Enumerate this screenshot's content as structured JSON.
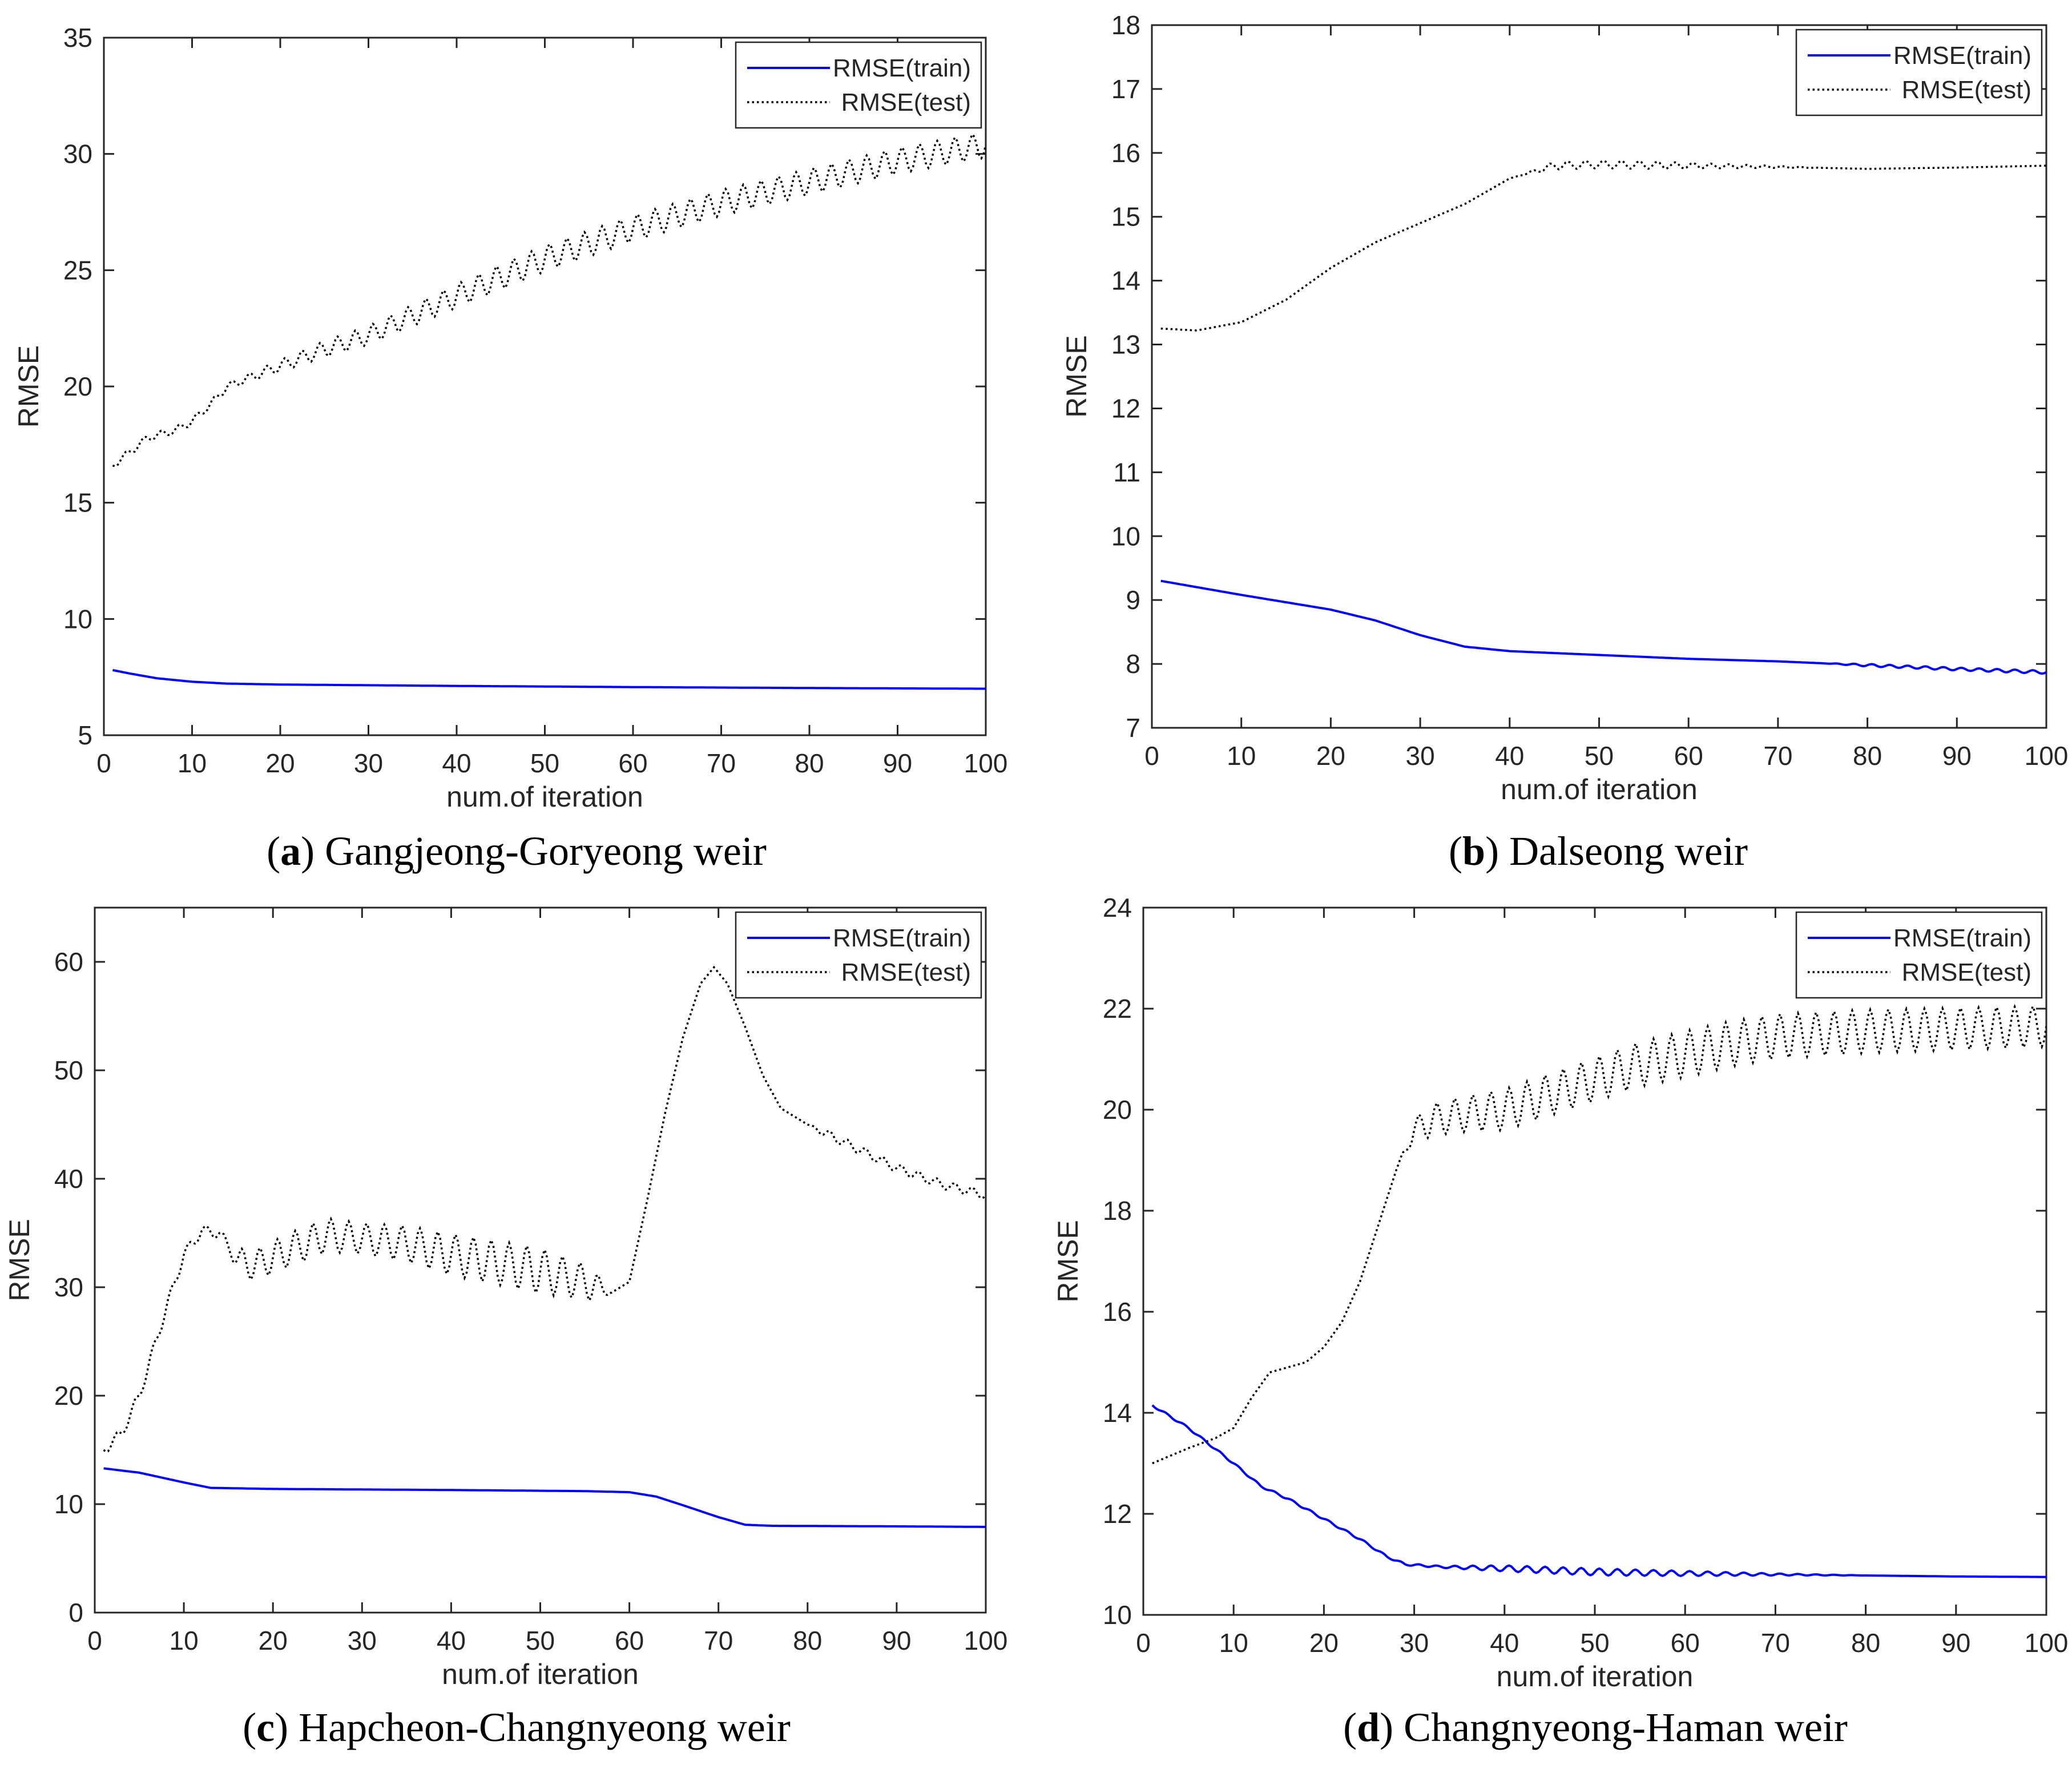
{
  "chart_data": [
    {
      "id": "a",
      "type": "line",
      "caption_letter": "a",
      "caption_text": "Gangjeong-Goryeong weir",
      "xlabel": "num.of iteration",
      "ylabel": "RMSE",
      "xlim": [
        0,
        100
      ],
      "ylim": [
        5,
        35
      ],
      "xticks": [
        0,
        10,
        20,
        30,
        40,
        50,
        60,
        70,
        80,
        90,
        100
      ],
      "yticks": [
        5,
        10,
        15,
        20,
        25,
        30,
        35
      ],
      "legend_position": "top-right",
      "series": [
        {
          "name": "RMSE(train)",
          "style": "solid",
          "color": "#0000ff",
          "knots": [
            [
              1,
              7.8
            ],
            [
              3,
              7.65
            ],
            [
              6,
              7.45
            ],
            [
              10,
              7.3
            ],
            [
              14,
              7.22
            ],
            [
              20,
              7.18
            ],
            [
              40,
              7.12
            ],
            [
              60,
              7.07
            ],
            [
              80,
              7.03
            ],
            [
              100,
              7.0
            ]
          ],
          "oscillation": []
        },
        {
          "name": "RMSE(test)",
          "style": "dotted",
          "color": "#000000",
          "knots": [
            [
              1,
              16.6
            ],
            [
              3,
              17.2
            ],
            [
              5,
              17.8
            ],
            [
              8,
              18.1
            ],
            [
              10,
              18.5
            ],
            [
              12,
              19.2
            ],
            [
              14,
              20.0
            ],
            [
              18,
              20.6
            ],
            [
              25,
              21.6
            ],
            [
              30,
              22.2
            ],
            [
              40,
              23.9
            ],
            [
              50,
              25.5
            ],
            [
              60,
              26.8
            ],
            [
              70,
              27.9
            ],
            [
              80,
              28.8
            ],
            [
              90,
              29.7
            ],
            [
              100,
              30.4
            ]
          ],
          "oscillation": [
            [
              15,
              0.15
            ],
            [
              25,
              0.35
            ],
            [
              45,
              0.55
            ],
            [
              100,
              0.55
            ]
          ],
          "oscillation_period": 2
        }
      ]
    },
    {
      "id": "b",
      "type": "line",
      "caption_letter": "b",
      "caption_text": "Dalseong weir",
      "xlabel": "num.of iteration",
      "ylabel": "RMSE",
      "xlim": [
        0,
        100
      ],
      "ylim": [
        7,
        18
      ],
      "xticks": [
        0,
        10,
        20,
        30,
        40,
        50,
        60,
        70,
        80,
        90,
        100
      ],
      "yticks": [
        7,
        8,
        9,
        10,
        11,
        12,
        13,
        14,
        15,
        16,
        17,
        18
      ],
      "legend_position": "top-right",
      "series": [
        {
          "name": "RMSE(train)",
          "style": "solid",
          "color": "#0000ff",
          "knots": [
            [
              1,
              9.3
            ],
            [
              10,
              9.08
            ],
            [
              20,
              8.85
            ],
            [
              25,
              8.68
            ],
            [
              30,
              8.45
            ],
            [
              35,
              8.27
            ],
            [
              40,
              8.2
            ],
            [
              50,
              8.14
            ],
            [
              60,
              8.08
            ],
            [
              70,
              8.04
            ],
            [
              80,
              7.98
            ],
            [
              90,
              7.92
            ],
            [
              100,
              7.87
            ]
          ],
          "oscillation": [
            [
              75,
              0.0
            ],
            [
              80,
              0.02
            ],
            [
              100,
              0.025
            ]
          ],
          "oscillation_period": 2
        },
        {
          "name": "RMSE(test)",
          "style": "dotted",
          "color": "#000000",
          "knots": [
            [
              1,
              13.25
            ],
            [
              5,
              13.22
            ],
            [
              10,
              13.35
            ],
            [
              15,
              13.7
            ],
            [
              20,
              14.2
            ],
            [
              25,
              14.6
            ],
            [
              30,
              14.9
            ],
            [
              35,
              15.2
            ],
            [
              40,
              15.6
            ],
            [
              45,
              15.8
            ],
            [
              50,
              15.82
            ],
            [
              60,
              15.8
            ],
            [
              70,
              15.78
            ],
            [
              80,
              15.75
            ],
            [
              90,
              15.77
            ],
            [
              100,
              15.8
            ]
          ],
          "oscillation": [
            [
              41,
              0.0
            ],
            [
              45,
              0.06
            ],
            [
              55,
              0.06
            ],
            [
              65,
              0.03
            ],
            [
              75,
              0.0
            ]
          ],
          "oscillation_period": 2
        }
      ]
    },
    {
      "id": "c",
      "type": "line",
      "caption_letter": "c",
      "caption_text": "Hapcheon-Changnyeong weir",
      "xlabel": "num.of iteration",
      "ylabel": "RMSE",
      "xlim": [
        0,
        100
      ],
      "ylim": [
        0,
        65
      ],
      "xticks": [
        0,
        10,
        20,
        30,
        40,
        50,
        60,
        70,
        80,
        90,
        100
      ],
      "yticks": [
        0,
        10,
        20,
        30,
        40,
        50,
        60
      ],
      "legend_position": "top-right",
      "series": [
        {
          "name": "RMSE(train)",
          "style": "solid",
          "color": "#0000ff",
          "knots": [
            [
              1,
              13.3
            ],
            [
              5,
              12.9
            ],
            [
              10,
              12.0
            ],
            [
              13,
              11.5
            ],
            [
              20,
              11.4
            ],
            [
              40,
              11.3
            ],
            [
              55,
              11.2
            ],
            [
              60,
              11.1
            ],
            [
              63,
              10.7
            ],
            [
              66,
              9.9
            ],
            [
              70,
              8.8
            ],
            [
              73,
              8.1
            ],
            [
              76,
              8.0
            ],
            [
              90,
              7.95
            ],
            [
              100,
              7.9
            ]
          ],
          "oscillation": []
        },
        {
          "name": "RMSE(test)",
          "style": "dotted",
          "color": "#000000",
          "knots": [
            [
              1,
              15.0
            ],
            [
              3,
              16.5
            ],
            [
              5,
              20.0
            ],
            [
              8,
              28.0
            ],
            [
              10,
              33.0
            ],
            [
              12,
              35.2
            ],
            [
              14,
              35.0
            ],
            [
              16,
              32.5
            ],
            [
              18,
              32.0
            ],
            [
              22,
              33.5
            ],
            [
              26,
              34.8
            ],
            [
              30,
              34.5
            ],
            [
              35,
              34.0
            ],
            [
              40,
              33.0
            ],
            [
              45,
              32.3
            ],
            [
              50,
              31.5
            ],
            [
              55,
              30.5
            ],
            [
              58,
              29.5
            ],
            [
              60,
              30.5
            ],
            [
              62,
              38.0
            ],
            [
              64,
              46.0
            ],
            [
              66,
              53.0
            ],
            [
              68,
              58.0
            ],
            [
              69.5,
              59.5
            ],
            [
              71,
              58.0
            ],
            [
              73,
              54.0
            ],
            [
              75,
              49.5
            ],
            [
              77,
              46.5
            ],
            [
              80,
              45.0
            ],
            [
              85,
              43.0
            ],
            [
              90,
              41.0
            ],
            [
              95,
              39.5
            ],
            [
              100,
              38.5
            ]
          ],
          "oscillation": [
            [
              15,
              0.5
            ],
            [
              17,
              1.4
            ],
            [
              25,
              1.6
            ],
            [
              30,
              1.4
            ],
            [
              40,
              1.9
            ],
            [
              50,
              2.1
            ],
            [
              56,
              1.5
            ],
            [
              58,
              0.0
            ],
            [
              80,
              0.0
            ],
            [
              82,
              0.4
            ],
            [
              100,
              0.4
            ]
          ],
          "oscillation_period": 2
        }
      ]
    },
    {
      "id": "d",
      "type": "line",
      "caption_letter": "d",
      "caption_text": "Changnyeong-Haman weir",
      "xlabel": "num.of iteration",
      "ylabel": "RMSE",
      "xlim": [
        0,
        100
      ],
      "ylim": [
        10,
        24
      ],
      "xticks": [
        0,
        10,
        20,
        30,
        40,
        50,
        60,
        70,
        80,
        90,
        100
      ],
      "yticks": [
        10,
        12,
        14,
        16,
        18,
        20,
        22,
        24
      ],
      "legend_position": "top-right",
      "series": [
        {
          "name": "RMSE(train)",
          "style": "solid",
          "color": "#0000ff",
          "knots": [
            [
              1,
              14.15
            ],
            [
              5,
              13.7
            ],
            [
              10,
              13.0
            ],
            [
              13,
              12.55
            ],
            [
              16,
              12.3
            ],
            [
              20,
              11.9
            ],
            [
              24,
              11.5
            ],
            [
              27,
              11.15
            ],
            [
              29,
              11.0
            ],
            [
              33,
              10.95
            ],
            [
              40,
              10.92
            ],
            [
              50,
              10.85
            ],
            [
              60,
              10.82
            ],
            [
              70,
              10.8
            ],
            [
              80,
              10.78
            ],
            [
              90,
              10.76
            ],
            [
              100,
              10.75
            ]
          ],
          "oscillation": [
            [
              33,
              0.02
            ],
            [
              40,
              0.06
            ],
            [
              50,
              0.07
            ],
            [
              60,
              0.05
            ],
            [
              70,
              0.02
            ],
            [
              80,
              0.0
            ]
          ],
          "oscillation_period": 2
        },
        {
          "name": "RMSE(test)",
          "style": "dotted",
          "color": "#000000",
          "knots": [
            [
              1,
              13.0
            ],
            [
              5,
              13.3
            ],
            [
              8,
              13.5
            ],
            [
              10,
              13.7
            ],
            [
              12,
              14.3
            ],
            [
              14,
              14.8
            ],
            [
              18,
              15.0
            ],
            [
              20,
              15.3
            ],
            [
              22,
              15.8
            ],
            [
              24,
              16.6
            ],
            [
              26,
              17.7
            ],
            [
              28,
              18.8
            ],
            [
              30,
              19.6
            ],
            [
              32,
              19.8
            ],
            [
              35,
              19.9
            ],
            [
              40,
              20.0
            ],
            [
              45,
              20.3
            ],
            [
              50,
              20.6
            ],
            [
              55,
              20.9
            ],
            [
              60,
              21.1
            ],
            [
              65,
              21.3
            ],
            [
              70,
              21.45
            ],
            [
              80,
              21.55
            ],
            [
              90,
              21.6
            ],
            [
              100,
              21.65
            ]
          ],
          "oscillation": [
            [
              28,
              0.0
            ],
            [
              31,
              0.3
            ],
            [
              40,
              0.4
            ],
            [
              60,
              0.45
            ],
            [
              100,
              0.4
            ]
          ],
          "oscillation_period": 2
        }
      ]
    }
  ]
}
